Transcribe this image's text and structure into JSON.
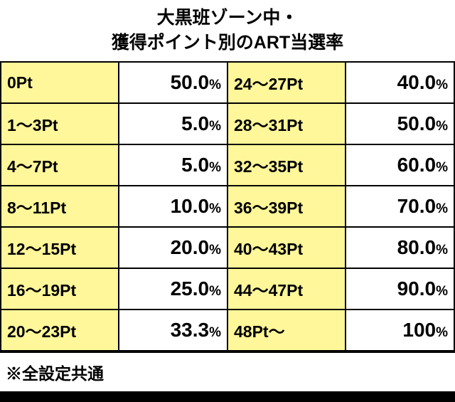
{
  "title": {
    "line1": "大黒班ゾーン中・",
    "line2": "獲得ポイント別のART当選率"
  },
  "colors": {
    "label_bg": "#fff799",
    "value_bg": "#ffffff",
    "border": "#000000",
    "text": "#000000",
    "background": "#000000"
  },
  "rows": [
    {
      "left_label": "0Pt",
      "left_value": "50.0",
      "left_suffix": "%",
      "right_label": "24～27Pt",
      "right_value": "40.0",
      "right_suffix": "%"
    },
    {
      "left_label": "1～3Pt",
      "left_value": "5.0",
      "left_suffix": "%",
      "right_label": "28～31Pt",
      "right_value": "50.0",
      "right_suffix": "%"
    },
    {
      "left_label": "4～7Pt",
      "left_value": "5.0",
      "left_suffix": "%",
      "right_label": "32～35Pt",
      "right_value": "60.0",
      "right_suffix": "%"
    },
    {
      "left_label": "8～11Pt",
      "left_value": "10.0",
      "left_suffix": "%",
      "right_label": "36～39Pt",
      "right_value": "70.0",
      "right_suffix": "%"
    },
    {
      "left_label": "12～15Pt",
      "left_value": "20.0",
      "left_suffix": "%",
      "right_label": "40～43Pt",
      "right_value": "80.0",
      "right_suffix": "%"
    },
    {
      "left_label": "16～19Pt",
      "left_value": "25.0",
      "left_suffix": "%",
      "right_label": "44～47Pt",
      "right_value": "90.0",
      "right_suffix": "%"
    },
    {
      "left_label": "20～23Pt",
      "left_value": "33.3",
      "left_suffix": "%",
      "right_label": "48Pt～",
      "right_value": "100",
      "right_suffix": "%"
    }
  ],
  "footnote": "※全設定共通"
}
